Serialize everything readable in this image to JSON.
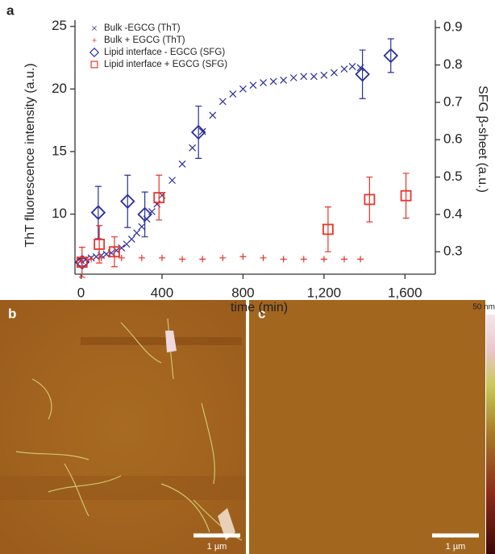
{
  "chart_data": {
    "type": "scatter",
    "panel_label": "a",
    "xlabel": "time (min)",
    "ylabel": "ThT fluorescence intensity (a.u.)",
    "y2label": "SFG β-sheet (a.u.)",
    "xlim": [
      -30,
      1750
    ],
    "xticks": [
      0,
      400,
      800,
      {
        "value": 1200,
        "label": "1,200"
      },
      {
        "value": 1600,
        "label": "1,600"
      }
    ],
    "ylim": [
      5.2,
      25.5
    ],
    "yticks": [
      10,
      15,
      20,
      25
    ],
    "y2lim": [
      0.24,
      0.92
    ],
    "y2ticks": [
      0.3,
      0.4,
      0.5,
      0.6,
      0.7,
      0.8,
      0.9
    ],
    "legend": "upper left",
    "series": [
      {
        "name": "Bulk -EGCG (ThT)",
        "color": "#2b2f9c",
        "marker": "x",
        "x": [
          0,
          25,
          50,
          75,
          100,
          125,
          150,
          175,
          200,
          225,
          250,
          275,
          300,
          325,
          350,
          375,
          400,
          450,
          500,
          550,
          600,
          650,
          700,
          750,
          800,
          850,
          900,
          950,
          1000,
          1050,
          1100,
          1150,
          1200,
          1250,
          1300,
          1340,
          1380
        ],
        "values": [
          6.3,
          6.4,
          6.5,
          6.6,
          6.7,
          6.8,
          6.9,
          7.1,
          7.3,
          7.6,
          8.0,
          8.5,
          9.0,
          9.6,
          10.2,
          10.8,
          11.5,
          12.7,
          14.0,
          15.3,
          16.6,
          17.9,
          19.0,
          19.6,
          20.0,
          20.3,
          20.5,
          20.6,
          20.7,
          20.9,
          21.0,
          21.0,
          21.1,
          21.3,
          21.6,
          21.8,
          21.7
        ]
      },
      {
        "name": "Bulk + EGCG (ThT)",
        "color": "#e8342a",
        "marker": "+",
        "x": [
          0,
          50,
          100,
          200,
          300,
          400,
          500,
          600,
          700,
          800,
          900,
          1000,
          1100,
          1200,
          1300,
          1380
        ],
        "values": [
          6.3,
          6.4,
          6.5,
          6.5,
          6.5,
          6.5,
          6.4,
          6.4,
          6.5,
          6.6,
          6.5,
          6.4,
          6.4,
          6.4,
          6.4,
          6.4
        ]
      },
      {
        "name": "Lipid interface - EGCG (SFG)",
        "color": "#2b2f9c",
        "marker": "diamond",
        "axis": "y2",
        "x": [
          5,
          85,
          230,
          315,
          580,
          1390,
          1530
        ],
        "values": [
          0.272,
          0.405,
          0.435,
          0.4,
          0.62,
          0.775,
          0.825
        ],
        "errors": [
          0.01,
          0.07,
          0.07,
          0.06,
          0.07,
          0.065,
          0.045
        ]
      },
      {
        "name": "Lipid interface + EGCG (SFG)",
        "color": "#e8342a",
        "marker": "square",
        "axis": "y2",
        "x": [
          5,
          90,
          165,
          385,
          1220,
          1425,
          1605
        ],
        "values": [
          0.272,
          0.32,
          0.3,
          0.445,
          0.36,
          0.44,
          0.45
        ],
        "errors": [
          0.04,
          0.05,
          0.04,
          0.06,
          0.06,
          0.06,
          0.06
        ]
      }
    ]
  },
  "images": [
    {
      "label": "b",
      "scale_bar": "1 µm"
    },
    {
      "label": "c",
      "scale_bar": "1 µm"
    }
  ],
  "colorbar": {
    "label": "50 nm"
  }
}
